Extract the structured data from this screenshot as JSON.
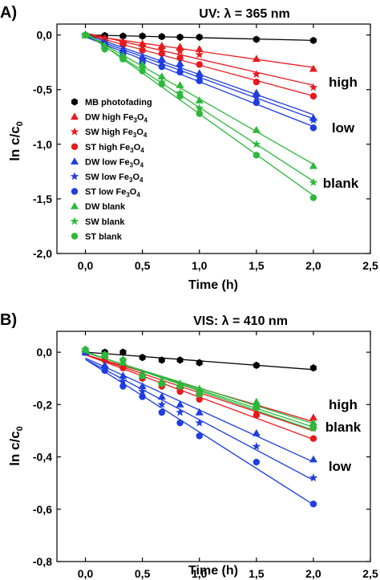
{
  "chart_data": [
    {
      "type": "scatter",
      "panel_label": "A)",
      "title": "UV: λ = 365 nm",
      "xlabel": "Time (h)",
      "ylabel_main": "ln c/c",
      "ylabel_sub": "0",
      "xlim": [
        -0.25,
        2.5
      ],
      "ylim": [
        -2.0,
        0.1
      ],
      "x_ticks": [
        0.0,
        0.5,
        1.0,
        1.5,
        2.0,
        2.5
      ],
      "x_tick_labels": [
        "0,0",
        "0,5",
        "1,0",
        "1,5",
        "2,0",
        "2,5"
      ],
      "y_ticks": [
        0.0,
        -0.5,
        -1.0,
        -1.5,
        -2.0
      ],
      "y_tick_labels": [
        "0,0",
        "-0,5",
        "-1,0",
        "-1,5",
        "-2,0"
      ],
      "grid": false,
      "legend_position": "left-middle",
      "x": [
        0.0,
        0.17,
        0.33,
        0.5,
        0.67,
        0.83,
        1.0,
        1.5,
        2.0
      ],
      "series": [
        {
          "name": "MB photofading",
          "marker": "hexagon",
          "color": "#000000",
          "values": [
            0.0,
            -0.005,
            -0.01,
            -0.01,
            -0.015,
            -0.02,
            -0.02,
            -0.04,
            -0.05
          ]
        },
        {
          "name": "DW high Fe3O4",
          "marker": "triangle",
          "color": "#e8191d",
          "values": [
            0.0,
            -0.03,
            -0.06,
            -0.08,
            -0.1,
            -0.11,
            -0.13,
            -0.22,
            -0.31
          ]
        },
        {
          "name": "SW high Fe3O4",
          "marker": "star",
          "color": "#e8191d",
          "values": [
            0.0,
            -0.04,
            -0.07,
            -0.1,
            -0.13,
            -0.15,
            -0.18,
            -0.36,
            -0.48
          ]
        },
        {
          "name": "ST high Fe3O4",
          "marker": "circle",
          "color": "#e8191d",
          "values": [
            0.0,
            -0.05,
            -0.09,
            -0.14,
            -0.17,
            -0.21,
            -0.27,
            -0.43,
            -0.56
          ]
        },
        {
          "name": "DW low Fe3O4",
          "marker": "triangle",
          "color": "#1f3de0",
          "values": [
            0.0,
            -0.07,
            -0.13,
            -0.2,
            -0.22,
            -0.26,
            -0.35,
            -0.53,
            -0.76
          ]
        },
        {
          "name": "SW low Fe3O4",
          "marker": "star",
          "color": "#1f3de0",
          "values": [
            0.0,
            -0.08,
            -0.15,
            -0.22,
            -0.25,
            -0.29,
            -0.39,
            -0.57,
            -0.78
          ]
        },
        {
          "name": "ST low Fe3O4",
          "marker": "circle",
          "color": "#1f3de0",
          "values": [
            0.0,
            -0.09,
            -0.17,
            -0.25,
            -0.29,
            -0.34,
            -0.42,
            -0.62,
            -0.85
          ]
        },
        {
          "name": "DW blank",
          "marker": "triangle",
          "color": "#2cb83a",
          "values": [
            0.0,
            -0.1,
            -0.19,
            -0.27,
            -0.38,
            -0.46,
            -0.6,
            -0.87,
            -1.2
          ]
        },
        {
          "name": "SW blank",
          "marker": "star",
          "color": "#2cb83a",
          "values": [
            0.0,
            -0.12,
            -0.22,
            -0.3,
            -0.43,
            -0.53,
            -0.67,
            -1.0,
            -1.35
          ]
        },
        {
          "name": "ST blank",
          "marker": "circle",
          "color": "#2cb83a",
          "values": [
            0.0,
            -0.13,
            -0.22,
            -0.33,
            -0.45,
            -0.56,
            -0.72,
            -1.1,
            -1.49
          ]
        }
      ],
      "annotations": [
        "high",
        "low",
        "blank"
      ]
    },
    {
      "type": "scatter",
      "panel_label": "B)",
      "title": "VIS: λ = 410 nm",
      "xlabel": "Time (h)",
      "ylabel_main": "ln c/c",
      "ylabel_sub": "0",
      "xlim": [
        -0.25,
        2.5
      ],
      "ylim": [
        -0.8,
        0.08
      ],
      "x_ticks": [
        0.0,
        0.5,
        1.0,
        1.5,
        2.0,
        2.5
      ],
      "x_tick_labels": [
        "0,0",
        "0,5",
        "1,0",
        "1,5",
        "2,0",
        "2,5"
      ],
      "y_ticks": [
        0.0,
        -0.2,
        -0.4,
        -0.6,
        -0.8
      ],
      "y_tick_labels": [
        "0,0",
        "-0,2",
        "-0,4",
        "-0,6",
        "-0,8"
      ],
      "grid": false,
      "legend_position": "none",
      "x": [
        0.0,
        0.17,
        0.33,
        0.5,
        0.67,
        0.83,
        1.0,
        1.5,
        2.0
      ],
      "series": [
        {
          "name": "MB photofading",
          "marker": "hexagon",
          "color": "#000000",
          "values": [
            0.0,
            0.0,
            0.0,
            -0.02,
            -0.03,
            -0.03,
            -0.04,
            -0.05,
            -0.06
          ]
        },
        {
          "name": "DW high Fe3O4",
          "marker": "triangle",
          "color": "#e8191d",
          "values": [
            0.0,
            -0.02,
            -0.04,
            -0.08,
            -0.11,
            -0.13,
            -0.15,
            -0.2,
            -0.25
          ]
        },
        {
          "name": "SW high Fe3O4",
          "marker": "star",
          "color": "#e8191d",
          "values": [
            0.0,
            -0.02,
            -0.05,
            -0.09,
            -0.12,
            -0.14,
            -0.17,
            -0.22,
            -0.29
          ]
        },
        {
          "name": "ST high Fe3O4",
          "marker": "circle",
          "color": "#e8191d",
          "values": [
            0.0,
            -0.03,
            -0.06,
            -0.1,
            -0.13,
            -0.15,
            -0.18,
            -0.24,
            -0.33
          ]
        },
        {
          "name": "DW low Fe3O4",
          "marker": "triangle",
          "color": "#1f3de0",
          "values": [
            0.0,
            -0.05,
            -0.09,
            -0.13,
            -0.17,
            -0.2,
            -0.23,
            -0.31,
            -0.41
          ]
        },
        {
          "name": "SW low Fe3O4",
          "marker": "star",
          "color": "#1f3de0",
          "values": [
            0.0,
            -0.06,
            -0.11,
            -0.15,
            -0.2,
            -0.23,
            -0.27,
            -0.36,
            -0.48
          ]
        },
        {
          "name": "ST low Fe3O4",
          "marker": "circle",
          "color": "#1f3de0",
          "values": [
            0.0,
            -0.07,
            -0.13,
            -0.17,
            -0.23,
            -0.27,
            -0.32,
            -0.42,
            -0.58
          ]
        },
        {
          "name": "DW blank",
          "marker": "triangle",
          "color": "#2cb83a",
          "values": [
            0.01,
            -0.01,
            -0.04,
            -0.09,
            -0.11,
            -0.12,
            -0.14,
            -0.19,
            -0.27
          ]
        },
        {
          "name": "SW blank",
          "marker": "star",
          "color": "#2cb83a",
          "values": [
            0.01,
            -0.01,
            -0.03,
            -0.09,
            -0.12,
            -0.13,
            -0.15,
            -0.2,
            -0.28
          ]
        },
        {
          "name": "ST blank",
          "marker": "circle",
          "color": "#2cb83a",
          "values": [
            0.01,
            -0.01,
            -0.03,
            -0.09,
            -0.12,
            -0.13,
            -0.16,
            -0.21,
            -0.29
          ]
        }
      ],
      "annotations": [
        "high",
        "blank",
        "low"
      ]
    }
  ]
}
